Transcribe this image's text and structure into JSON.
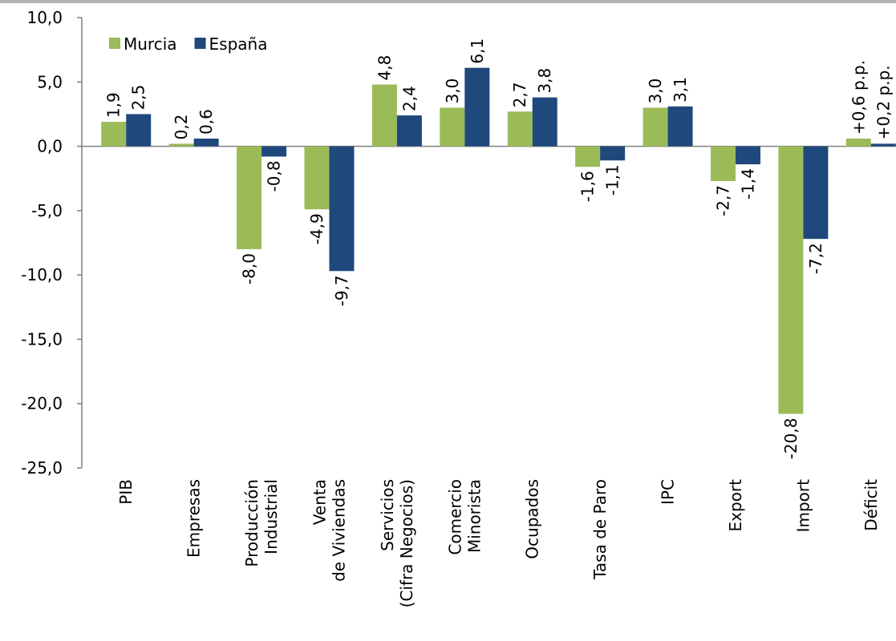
{
  "chart_data": {
    "type": "bar",
    "categories": [
      [
        "PIB"
      ],
      [
        "Empresas"
      ],
      [
        "Producción",
        "Industrial"
      ],
      [
        "Venta",
        "de Viviendas"
      ],
      [
        "Servicios",
        "(Cifra Negocios)"
      ],
      [
        "Comercio",
        "Minorista"
      ],
      [
        "Ocupados"
      ],
      [
        "Tasa de Paro"
      ],
      [
        "IPC"
      ],
      [
        "Export"
      ],
      [
        "Import"
      ],
      [
        "Déficit"
      ]
    ],
    "series": [
      {
        "name": "Murcia",
        "color": "#9bbb59",
        "values": [
          1.9,
          0.2,
          -8.0,
          -4.9,
          4.8,
          3.0,
          2.7,
          -1.6,
          3.0,
          -2.7,
          -20.8,
          0.6
        ],
        "value_labels": [
          "1,9",
          "0,2",
          "-8,0",
          "-4,9",
          "4,8",
          "3,0",
          "2,7",
          "-1,6",
          "3,0",
          "-2,7",
          "-20,8",
          "+0,6 p.p."
        ]
      },
      {
        "name": "España",
        "color": "#1f497d",
        "values": [
          2.5,
          0.6,
          -0.8,
          -9.7,
          2.4,
          6.1,
          3.8,
          -1.1,
          3.1,
          -1.4,
          -7.2,
          0.2
        ],
        "value_labels": [
          "2,5",
          "0,6",
          "-0,8",
          "-9,7",
          "2,4",
          "6,1",
          "3,8",
          "-1,1",
          "3,1",
          "-1,4",
          "-7,2",
          "+0,2 p.p."
        ]
      }
    ],
    "ylim": [
      -25,
      10
    ],
    "yticks": [
      {
        "value": -25,
        "label": "-25,0"
      },
      {
        "value": -20,
        "label": "-20,0"
      },
      {
        "value": -15,
        "label": "-15,0"
      },
      {
        "value": -10,
        "label": "-10,0"
      },
      {
        "value": -5,
        "label": "-5,0"
      },
      {
        "value": 0,
        "label": "0,0"
      },
      {
        "value": 5,
        "label": "5,0"
      },
      {
        "value": 10,
        "label": "10,0"
      }
    ],
    "grid": false,
    "legend": "top-left"
  }
}
